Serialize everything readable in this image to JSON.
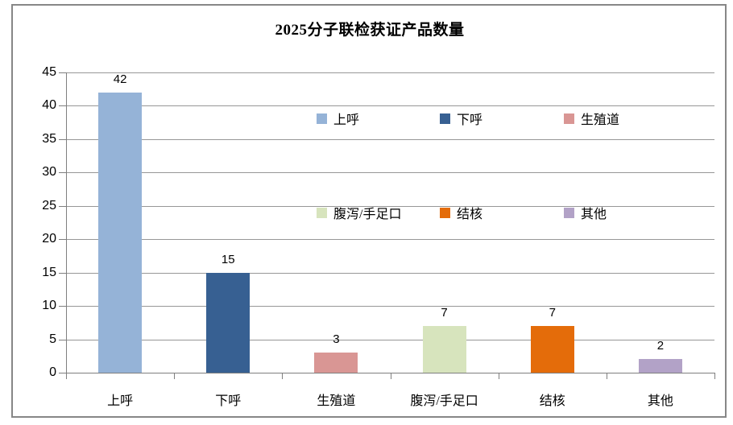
{
  "window": {
    "background_color": "#FFFFFF",
    "border_color": "#878787"
  },
  "chart_data": {
    "type": "bar",
    "title": "2025分子联检获证产品数量",
    "categories": [
      "上呼",
      "下呼",
      "生殖道",
      "腹泻/手足口",
      "结核",
      "其他"
    ],
    "values": [
      42,
      15,
      3,
      7,
      7,
      2
    ],
    "data_labels": [
      "42",
      "15",
      "3",
      "7",
      "7",
      "2"
    ],
    "bar_colors": [
      "#95B3D7",
      "#376092",
      "#D99694",
      "#D7E4BD",
      "#E46C0A",
      "#B2A2C7"
    ],
    "xlabel": "",
    "ylabel": "",
    "ylim": [
      0,
      45
    ],
    "ytick_step": 5,
    "ytick_labels": [
      "0",
      "5",
      "10",
      "15",
      "20",
      "25",
      "30",
      "35",
      "40",
      "45"
    ],
    "grid": "horizontal gridlines on",
    "axis_color": "#7F7F7F",
    "gridline_color": "#979797",
    "legend": {
      "position": "inside plot area, two rows by three columns",
      "entries": [
        {
          "label": "上呼",
          "color": "#95B3D7"
        },
        {
          "label": "下呼",
          "color": "#376092"
        },
        {
          "label": "生殖道",
          "color": "#D99694"
        },
        {
          "label": "腹泻/手足口",
          "color": "#D7E4BD"
        },
        {
          "label": "结核",
          "color": "#E46C0A"
        },
        {
          "label": "其他",
          "color": "#B2A2C7"
        }
      ]
    }
  }
}
